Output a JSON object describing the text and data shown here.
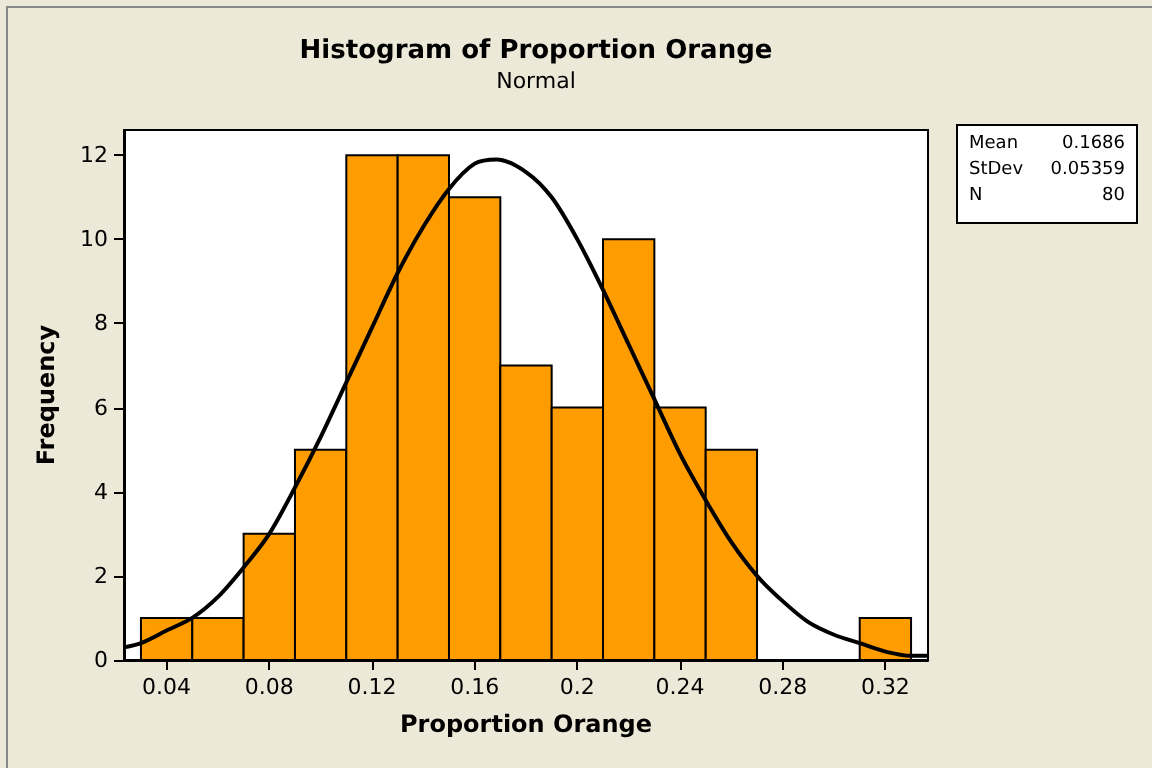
{
  "chart_data": {
    "type": "histogram",
    "title": "Histogram of Proportion Orange",
    "subtitle": "Normal",
    "xlabel": "Proportion Orange",
    "ylabel": "Frequency",
    "bins": [
      0.03,
      0.05,
      0.07,
      0.09,
      0.11,
      0.13,
      0.15,
      0.17,
      0.19,
      0.21,
      0.23,
      0.25,
      0.27,
      0.29,
      0.31,
      0.33
    ],
    "values": [
      1,
      1,
      3,
      5,
      12,
      12,
      11,
      7,
      6,
      10,
      6,
      5,
      0,
      0,
      1
    ],
    "color": "#ff9c00",
    "series": [
      {
        "type": "line",
        "color": "#000000",
        "x": [
          0.0234,
          0.03,
          0.04,
          0.05,
          0.06,
          0.07,
          0.08,
          0.09,
          0.1,
          0.11,
          0.12,
          0.13,
          0.14,
          0.15,
          0.16,
          0.1686,
          0.18,
          0.19,
          0.2,
          0.21,
          0.22,
          0.23,
          0.24,
          0.25,
          0.26,
          0.27,
          0.28,
          0.29,
          0.3,
          0.31,
          0.32,
          0.33,
          0.3366
        ],
        "values": [
          0.3,
          0.4,
          0.7,
          1.0,
          1.5,
          2.2,
          3.0,
          4.1,
          5.3,
          6.6,
          7.9,
          9.2,
          10.3,
          11.2,
          11.8,
          11.9,
          11.6,
          11.0,
          10.0,
          8.8,
          7.5,
          6.2,
          4.9,
          3.8,
          2.8,
          2.0,
          1.4,
          0.9,
          0.6,
          0.4,
          0.2,
          0.1,
          0.1
        ]
      }
    ],
    "xlim": [
      0.0234,
      0.3366
    ],
    "xticks": [
      0.04,
      0.08,
      0.12,
      0.16,
      0.2,
      0.24,
      0.28,
      0.32
    ],
    "ylim": [
      0,
      12.6
    ],
    "yticks": [
      0,
      2,
      4,
      6,
      8,
      10,
      12
    ],
    "grid": false,
    "marker": "none",
    "line_style": "solid",
    "annotations": [
      "Mean 0.1686",
      "StDev 0.05359",
      "N 80"
    ]
  }
}
